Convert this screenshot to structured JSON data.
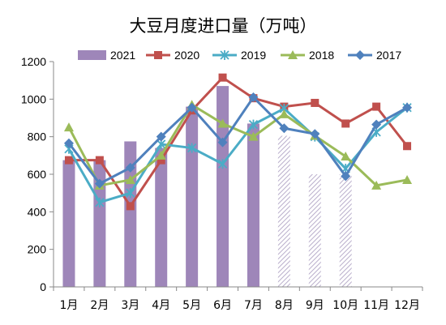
{
  "chart_data": {
    "type": "bar",
    "title": "大豆月度进口量（万吨）",
    "categories": [
      "1月",
      "2月",
      "3月",
      "4月",
      "5月",
      "6月",
      "7月",
      "8月",
      "9月",
      "10月",
      "11月",
      "12月"
    ],
    "yticks": [
      "0",
      "200",
      "400",
      "600",
      "800",
      "1000",
      "1200"
    ],
    "ylim": [
      0,
      1200
    ],
    "grid": false,
    "legend_position": "top",
    "bar_series": {
      "name": "2021",
      "color": "#9e86b9",
      "values": [
        675,
        675,
        775,
        740,
        960,
        1070,
        870,
        805,
        600,
        600,
        null,
        null
      ],
      "hatched_from_index": 7
    },
    "line_series": [
      {
        "name": "2020",
        "color": "#c0504d",
        "marker": "square",
        "values": [
          675,
          675,
          430,
          675,
          940,
          1115,
          1005,
          960,
          980,
          870,
          960,
          750
        ]
      },
      {
        "name": "2019",
        "color": "#4bacc6",
        "marker": "star",
        "values": [
          735,
          450,
          500,
          760,
          740,
          655,
          865,
          950,
          800,
          630,
          825,
          955
        ]
      },
      {
        "name": "2018",
        "color": "#9bbb59",
        "marker": "triangle",
        "values": [
          850,
          540,
          570,
          700,
          970,
          870,
          800,
          920,
          805,
          695,
          540,
          570
        ]
      },
      {
        "name": "2017",
        "color": "#4f81bd",
        "marker": "diamond",
        "values": [
          765,
          550,
          635,
          800,
          955,
          770,
          1010,
          845,
          815,
          590,
          865,
          955
        ]
      }
    ]
  }
}
